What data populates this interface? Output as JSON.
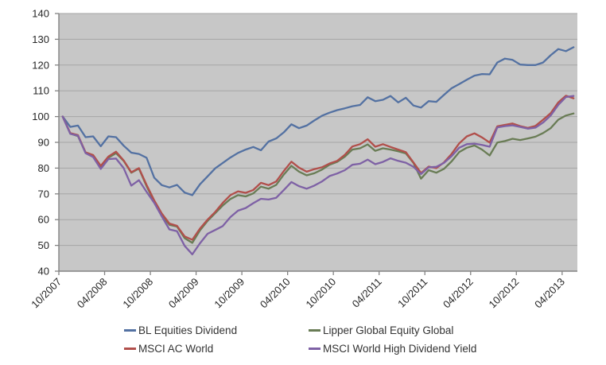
{
  "chart_data": {
    "type": "line",
    "title": "",
    "xlabel": "",
    "ylabel": "",
    "y_ticks": [
      40,
      50,
      60,
      70,
      80,
      90,
      100,
      110,
      120,
      130,
      140
    ],
    "ylim": [
      40,
      140
    ],
    "x_tick_every": 6,
    "x_tick_labels": [
      "10/2007",
      "04/2008",
      "10/2008",
      "04/2009",
      "10/2009",
      "04/2010",
      "10/2010",
      "04/2011",
      "10/2011",
      "04/2012",
      "10/2012",
      "04/2013"
    ],
    "x_months": [
      "10/2007",
      "11/2007",
      "12/2007",
      "01/2008",
      "02/2008",
      "03/2008",
      "04/2008",
      "05/2008",
      "06/2008",
      "07/2008",
      "08/2008",
      "09/2008",
      "10/2008",
      "11/2008",
      "12/2008",
      "01/2009",
      "02/2009",
      "03/2009",
      "04/2009",
      "05/2009",
      "06/2009",
      "07/2009",
      "08/2009",
      "09/2009",
      "10/2009",
      "11/2009",
      "12/2009",
      "01/2010",
      "02/2010",
      "03/2010",
      "04/2010",
      "05/2010",
      "06/2010",
      "07/2010",
      "08/2010",
      "09/2010",
      "10/2010",
      "11/2010",
      "12/2010",
      "01/2011",
      "02/2011",
      "03/2011",
      "04/2011",
      "05/2011",
      "06/2011",
      "07/2011",
      "08/2011",
      "09/2011",
      "10/2011",
      "11/2011",
      "12/2011",
      "01/2012",
      "02/2012",
      "03/2012",
      "04/2012",
      "05/2012",
      "06/2012",
      "07/2012",
      "08/2012",
      "09/2012",
      "10/2012",
      "11/2012",
      "12/2012",
      "01/2013",
      "02/2013",
      "03/2013",
      "04/2013",
      "05/2013"
    ],
    "base_value": 100,
    "legend_position": "bottom",
    "grid": "horizontal",
    "plot_bg_color": "#c7c7c7",
    "gridline_color": "#a6a6a6",
    "axis_color": "#848484",
    "series": [
      {
        "name": "BL Equities Dividend",
        "color": "#5371a2",
        "values": [
          100,
          96,
          96.5,
          92,
          92.3,
          88.5,
          92.3,
          92,
          88.7,
          86,
          85.5,
          84,
          76.3,
          73.4,
          72.5,
          73.5,
          70.5,
          69.5,
          73.7,
          76.8,
          79.9,
          82,
          84.1,
          85.9,
          87.2,
          88.2,
          86.9,
          90.3,
          91.5,
          93.9,
          97,
          95.5,
          96.5,
          98.5,
          100.3,
          101.5,
          102.5,
          103.2,
          104,
          104.5,
          107.5,
          106,
          106.5,
          108,
          105.5,
          107.3,
          104.3,
          103.5,
          106,
          105.7,
          108.4,
          111,
          112.6,
          114.3,
          115.9,
          116.5,
          116.4,
          121,
          122.5,
          122,
          120.2,
          120,
          120,
          121,
          123.8,
          126.2,
          125.4,
          126.9
        ]
      },
      {
        "name": "MSCI AC World",
        "color": "#b14f4b",
        "values": [
          100,
          93.6,
          92.8,
          86.1,
          85.1,
          80.9,
          84.5,
          86.4,
          83,
          78.4,
          80,
          73.5,
          67.5,
          62.4,
          58.5,
          57.6,
          53.5,
          52.2,
          56.5,
          60,
          63,
          66.5,
          69.5,
          71,
          70.4,
          71.5,
          74.3,
          73.4,
          74.8,
          78.9,
          82.5,
          80.2,
          78.6,
          79.6,
          80.3,
          81.8,
          82.8,
          85.2,
          88.4,
          89.3,
          91.2,
          88.3,
          89.3,
          88.2,
          87.2,
          86.2,
          82.2,
          78.1,
          80.6,
          80,
          82.2,
          85.5,
          89.6,
          92.3,
          93.5,
          91.9,
          89.9,
          96.2,
          96.8,
          97.3,
          96.3,
          95.6,
          96.4,
          98.8,
          101.3,
          105.5,
          108.1,
          107.1
        ]
      },
      {
        "name": "Lipper Global Equity Global",
        "color": "#697c55",
        "values": [
          100,
          93.4,
          92.4,
          86,
          84.6,
          80.4,
          84,
          85.8,
          82.8,
          78.2,
          79.8,
          73,
          67,
          61.8,
          58,
          57.3,
          52.8,
          51,
          55.8,
          59.5,
          62.5,
          65.5,
          68,
          69.5,
          69,
          70.2,
          72.8,
          72,
          73.5,
          77.5,
          80.9,
          78.6,
          77.2,
          78,
          79.4,
          81.3,
          82.4,
          84.4,
          87.2,
          87.7,
          89.2,
          86.7,
          87.7,
          87.2,
          86.5,
          85.7,
          82,
          75.9,
          79.2,
          78.2,
          79.7,
          82.6,
          86.2,
          87.9,
          88.8,
          87.2,
          84.9,
          89.9,
          90.5,
          91.4,
          90.9,
          91.5,
          92.2,
          93.6,
          95.5,
          98.8,
          100.4,
          101.2
        ]
      },
      {
        "name": "MSCI World High Dividend Yield",
        "color": "#7e61a5",
        "values": [
          100,
          93.3,
          92.6,
          85.8,
          84.3,
          79.7,
          83.5,
          83.7,
          80,
          73.2,
          75.3,
          70.8,
          66.5,
          61.3,
          56.2,
          55.5,
          49.8,
          46.5,
          50.8,
          54.5,
          56,
          57.5,
          61,
          63.5,
          64.5,
          66.4,
          68.1,
          67.8,
          68.5,
          71.5,
          74.6,
          73,
          72,
          73.2,
          74.8,
          76.9,
          77.9,
          79.2,
          81.3,
          81.7,
          83.3,
          81.5,
          82.4,
          83.8,
          82.8,
          82.1,
          80.5,
          77.7,
          80.3,
          80.5,
          82,
          84.6,
          87.9,
          89.3,
          89.5,
          89,
          88.3,
          95.8,
          96.3,
          96.6,
          96,
          95.3,
          95.7,
          97.7,
          100.4,
          104.5,
          107.6,
          108
        ]
      }
    ]
  }
}
